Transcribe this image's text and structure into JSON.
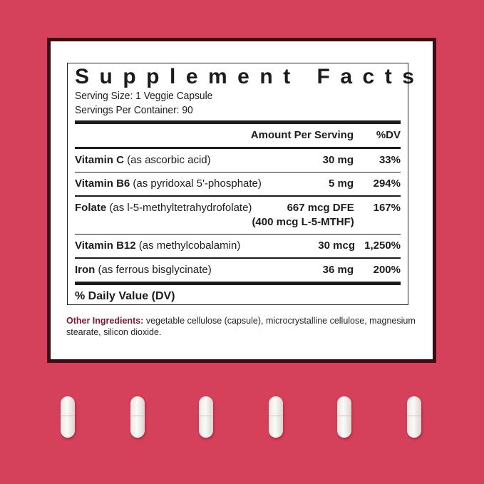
{
  "title": "Supplement Facts",
  "serving_size": "Serving Size: 1 Veggie Capsule",
  "servings_per_container": "Servings Per Container: 90",
  "header": {
    "amount": "Amount Per Serving",
    "dv": "%DV"
  },
  "rows": [
    {
      "name": "Vitamin C",
      "detail": " (as ascorbic acid)",
      "amount": "30 mg",
      "dv": "33%"
    },
    {
      "name": "Vitamin B6",
      "detail": " (as pyridoxal 5'-phosphate)",
      "amount": "5 mg",
      "dv": "294%"
    },
    {
      "name": "Folate",
      "detail": " (as l-5-methyltetrahydrofolate)",
      "amount": "667 mcg DFE",
      "amount2": "(400 mcg L-5-MTHF)",
      "dv": "167%"
    },
    {
      "name": "Vitamin B12",
      "detail": " (as methylcobalamin)",
      "amount": "30 mcg",
      "dv": "1,250%"
    },
    {
      "name": "Iron",
      "detail": " (as ferrous bisglycinate)",
      "amount": "36 mg",
      "dv": "200%"
    }
  ],
  "footer": "% Daily Value (DV)",
  "other_label": "Other Ingredients:",
  "other_text": " vegetable cellulose (capsule), microcrystalline cellulose, magnesium stearate, silicon dioxide.",
  "colors": {
    "background": "#d5405a",
    "frame": "#3b0c16",
    "other_label": "#7a1a33"
  }
}
